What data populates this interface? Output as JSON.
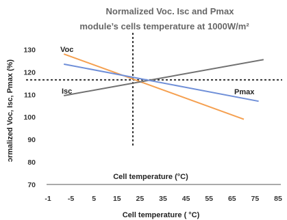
{
  "chart_data": {
    "type": "line",
    "title": "Normalized Voc. Isc and Pmax",
    "subtitle": "module’s cells temperature at 1000W/m²",
    "xlabel": "Cell temperature ( °C)",
    "xlabel_inner": "Cell temperature (°C)",
    "ylabel": "ɔrmalized Voc, Isc, Pmax (%)",
    "xlim": [
      -10,
      85
    ],
    "ylim": [
      70,
      135
    ],
    "x_ticks": [
      "-1",
      "-5",
      "5",
      "15",
      "25",
      "35",
      "45",
      "55",
      "65",
      "75",
      "85"
    ],
    "y_ticks": [
      70,
      80,
      90,
      100,
      110,
      120,
      130
    ],
    "reference_lines": {
      "x": 25,
      "y": 116.5,
      "style": "dotted"
    },
    "series": [
      {
        "name": "Voc",
        "color": "#f5a050",
        "x": [
          -3,
          70
        ],
        "y": [
          128,
          99
        ]
      },
      {
        "name": "Isc",
        "color": "#707070",
        "x": [
          -3,
          78
        ],
        "y": [
          109.5,
          125.5
        ]
      },
      {
        "name": "Pmax",
        "color": "#6f8fd8",
        "x": [
          -3,
          76
        ],
        "y": [
          123.5,
          107
        ]
      }
    ],
    "grid": false
  }
}
